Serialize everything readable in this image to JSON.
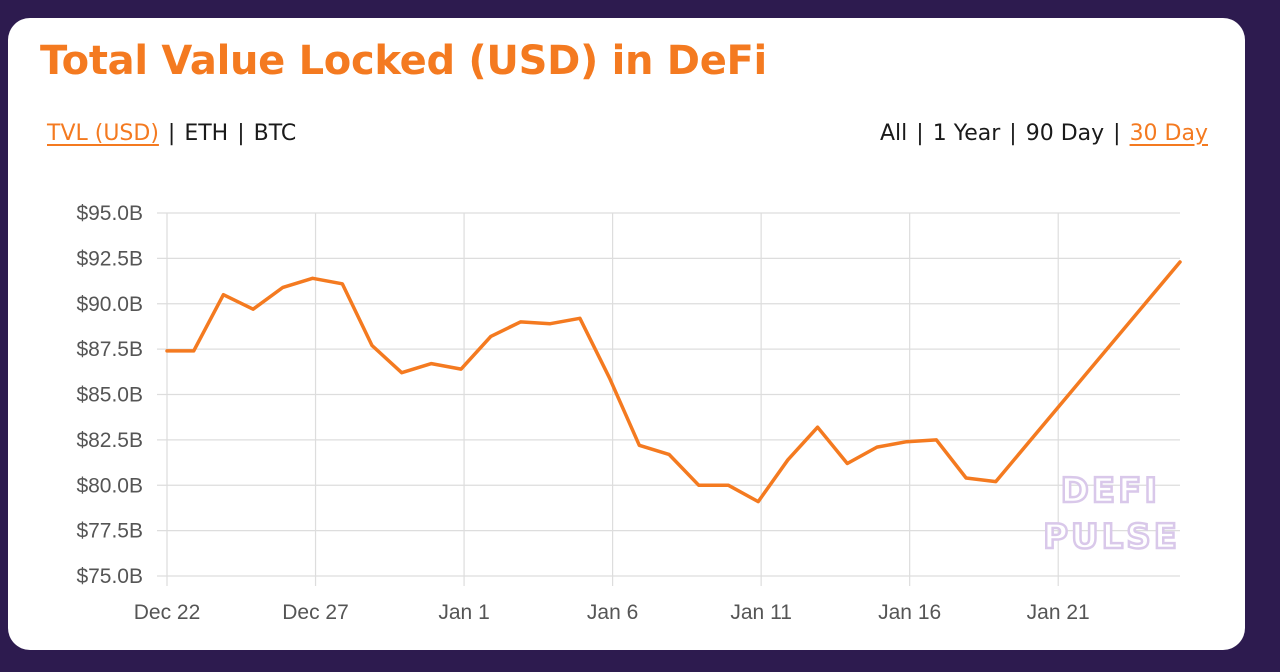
{
  "title": "Total Value Locked (USD) in DeFi",
  "metric_tabs": [
    {
      "label": "TVL (USD)",
      "active": true
    },
    {
      "label": "ETH",
      "active": false
    },
    {
      "label": "BTC",
      "active": false
    }
  ],
  "range_tabs": [
    {
      "label": "All",
      "active": false
    },
    {
      "label": "1 Year",
      "active": false
    },
    {
      "label": "90 Day",
      "active": false
    },
    {
      "label": "30 Day",
      "active": true
    }
  ],
  "separator": "|",
  "watermark": [
    "DEFI",
    "PULSE"
  ],
  "colors": {
    "accent": "#f47a20",
    "background": "#2d1b4f",
    "card": "#ffffff",
    "grid": "#dddddd",
    "watermark": "#d9c8ea"
  },
  "chart_data": {
    "type": "line",
    "x_ticks": [
      "Dec 22",
      "Dec 27",
      "Jan 1",
      "Jan 6",
      "Jan 11",
      "Jan 16",
      "Jan 21"
    ],
    "x_tick_day": [
      0,
      5,
      10,
      15,
      20,
      25,
      30
    ],
    "y_ticks": [
      "$95.0B",
      "$92.5B",
      "$90.0B",
      "$87.5B",
      "$85.0B",
      "$82.5B",
      "$80.0B",
      "$77.5B",
      "$75.0B"
    ],
    "y_tick_values": [
      95.0,
      92.5,
      90.0,
      87.5,
      85.0,
      82.5,
      80.0,
      77.5,
      75.0
    ],
    "ylim": [
      75.0,
      95.0
    ],
    "xlim": [
      0,
      34.1
    ],
    "y_unit": "$B",
    "grid": true,
    "series": [
      {
        "points": [
          [
            0,
            87.4
          ],
          [
            0.9,
            87.4
          ],
          [
            1.9,
            90.5
          ],
          [
            2.9,
            89.7
          ],
          [
            3.9,
            90.9
          ],
          [
            4.9,
            91.4
          ],
          [
            5.9,
            91.1
          ],
          [
            6.9,
            87.7
          ],
          [
            7.9,
            86.2
          ],
          [
            8.9,
            86.7
          ],
          [
            9.9,
            86.4
          ],
          [
            10.9,
            88.2
          ],
          [
            11.9,
            89.0
          ],
          [
            12.9,
            88.9
          ],
          [
            13.9,
            89.2
          ],
          [
            14.9,
            85.9
          ],
          [
            15.9,
            82.2
          ],
          [
            16.9,
            81.7
          ],
          [
            17.9,
            80.0
          ],
          [
            18.9,
            80.0
          ],
          [
            19.9,
            79.1
          ],
          [
            20.9,
            81.4
          ],
          [
            21.9,
            83.2
          ],
          [
            22.9,
            81.2
          ],
          [
            23.9,
            82.1
          ],
          [
            24.9,
            82.4
          ],
          [
            25.9,
            82.5
          ],
          [
            26.9,
            80.4
          ],
          [
            27.9,
            80.2
          ],
          [
            34.1,
            92.3
          ]
        ]
      }
    ]
  }
}
